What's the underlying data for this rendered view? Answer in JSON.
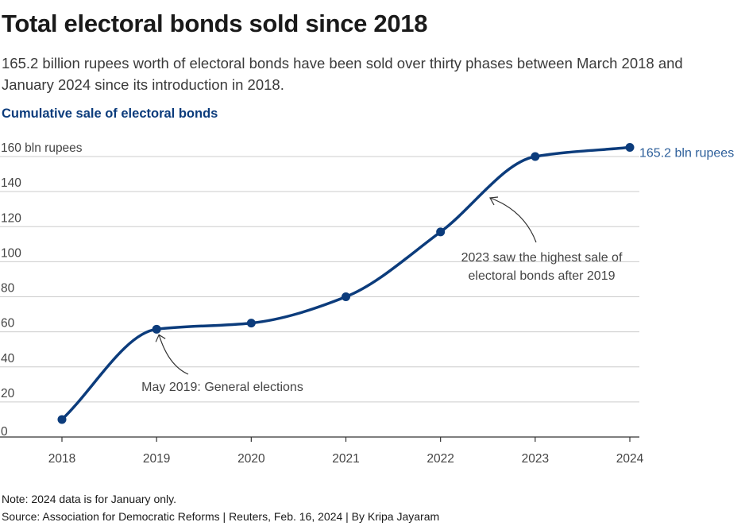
{
  "title": "Total electoral bonds sold since 2018",
  "subtitle": "165.2 billion rupees worth of electoral bonds have been sold over thirty phases between March 2018 and January 2024 since its introduction in 2018.",
  "chart_heading": "Cumulative sale of electoral bonds",
  "note": "Note: 2024 data is for January only.",
  "source": "Source: Association for Democratic Reforms | Reuters, Feb. 16, 2024 | By Kripa Jayaram",
  "colors": {
    "line": "#0c3c7c",
    "grid": "#cccccc",
    "axis": "#333333",
    "end_label": "#2d5f9a"
  },
  "chart_data": {
    "type": "line",
    "x": [
      2018,
      2019,
      2020,
      2021,
      2022,
      2023,
      2024
    ],
    "values": [
      10,
      61.5,
      65,
      80,
      117,
      160,
      165.2
    ],
    "ylim": [
      0,
      160
    ],
    "yticks": [
      0,
      20,
      40,
      60,
      80,
      100,
      120,
      140,
      160
    ],
    "ytick_labels": [
      "0",
      "20",
      "40",
      "60",
      "80",
      "100",
      "120",
      "140",
      "160 bln rupees"
    ],
    "xtick_labels": [
      "2018",
      "2019",
      "2020",
      "2021",
      "2022",
      "2023",
      "2024"
    ],
    "end_label": "165.2 bln rupees",
    "grid": true,
    "annotations": [
      {
        "text_lines": [
          "May 2019: General elections"
        ],
        "target_x": 2019,
        "target_y": 61.5
      },
      {
        "text_lines": [
          "2023 saw the highest sale of",
          "electoral bonds after 2019"
        ],
        "target_x": 2022.5,
        "target_y": 136
      }
    ]
  }
}
